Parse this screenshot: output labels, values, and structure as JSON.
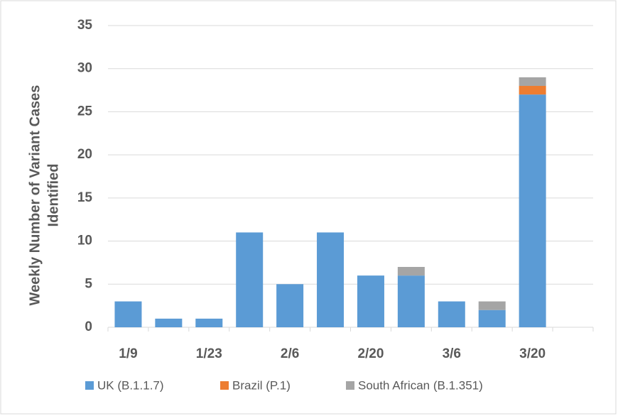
{
  "chart_data": {
    "type": "stacked_bar",
    "ylabel": [
      "Weekly Number of Variant Cases",
      "Identified"
    ],
    "categories": [
      "1/9",
      null,
      "1/23",
      null,
      "2/6",
      null,
      "2/20",
      null,
      "3/6",
      null,
      "3/20",
      null
    ],
    "series": [
      {
        "name": "UK (B.1.1.7)",
        "color": "#5b9bd5",
        "values": [
          3,
          1,
          1,
          11,
          5,
          11,
          6,
          6,
          3,
          2,
          27,
          null
        ]
      },
      {
        "name": "Brazil (P.1)",
        "color": "#ed7d31",
        "values": [
          0,
          0,
          0,
          0,
          0,
          0,
          0,
          0,
          0,
          0,
          1,
          null
        ]
      },
      {
        "name": "South African (B.1.351)",
        "color": "#a5a5a5",
        "values": [
          0,
          0,
          0,
          0,
          0,
          0,
          0,
          1,
          0,
          1,
          1,
          null
        ]
      }
    ],
    "ylim": [
      0,
      35
    ],
    "yticks": [
      0,
      5,
      10,
      15,
      20,
      25,
      30,
      35
    ],
    "grid": true
  }
}
